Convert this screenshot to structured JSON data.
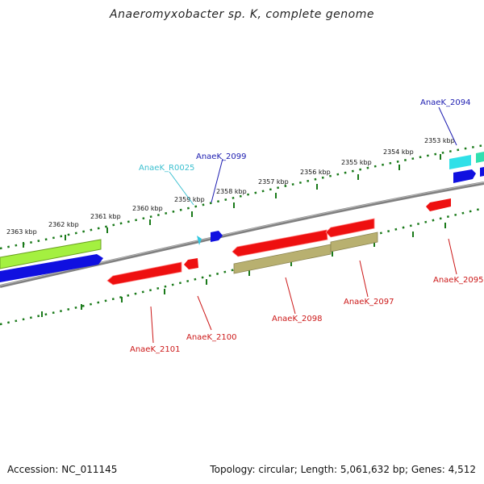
{
  "title": "Anaeromyxobacter sp. K, complete genome",
  "footer": {
    "accession": "Accession: NC_011145",
    "summary": "Topology: circular; Length: 5,061,632 bp; Genes: 4,512"
  },
  "colors": {
    "forward_gene": "#1010e0",
    "forward_rna": "#30d0e0",
    "reverse_gene": "#ee1010",
    "reverse_pseudo": "#b8b070",
    "forward_label": "#1c1cb0",
    "rna_label": "#3cc0d0",
    "reverse_label": "#cc1818",
    "backbone": "#808080",
    "ruler": "#1a7a1a"
  },
  "ruler_labels": [
    "2363 kbp",
    "2362 kbp",
    "2361 kbp",
    "2360 kbp",
    "2359 kbp",
    "2358 kbp",
    "2357 kbp",
    "2356 kbp",
    "2355 kbp",
    "2354 kbp",
    "2353 kbp"
  ],
  "genes": [
    {
      "id": "AnaeK_2094",
      "strand": "forward"
    },
    {
      "id": "AnaeK_2099",
      "strand": "forward"
    },
    {
      "id": "AnaeK_R0025",
      "strand": "forward"
    },
    {
      "id": "AnaeK_2095",
      "strand": "reverse"
    },
    {
      "id": "AnaeK_2097",
      "strand": "reverse"
    },
    {
      "id": "AnaeK_2098",
      "strand": "reverse"
    },
    {
      "id": "AnaeK_2100",
      "strand": "reverse"
    },
    {
      "id": "AnaeK_2101",
      "strand": "reverse"
    }
  ]
}
